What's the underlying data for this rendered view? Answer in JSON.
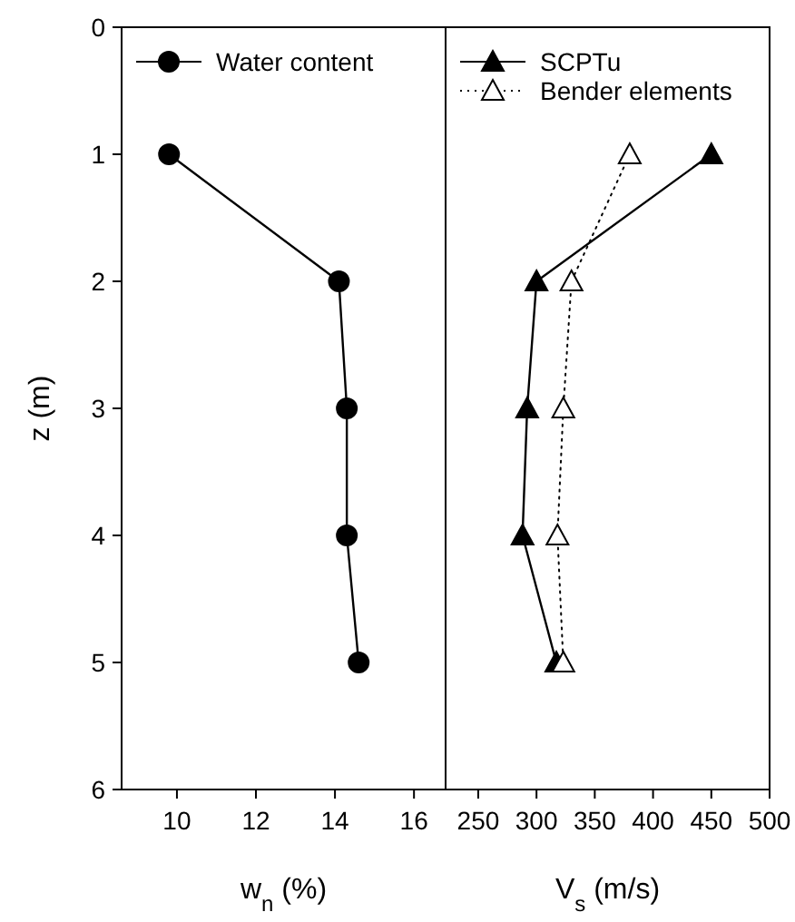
{
  "chart_data": [
    {
      "type": "line",
      "xlabel": "w$_{n}$ (%)",
      "ylabel": "z (m)",
      "xlim": [
        8.6,
        16.8
      ],
      "xticks": [
        10,
        12,
        14,
        16
      ],
      "ylim": [
        6,
        0
      ],
      "yticks": [
        0,
        1,
        2,
        3,
        4,
        5,
        6
      ],
      "legend": "top left",
      "grid": false,
      "series": [
        {
          "name": "Water content",
          "color": "#000000",
          "marker": "circle",
          "line_style": "solid",
          "x": [
            9.8,
            14.1,
            14.3,
            14.3,
            14.6
          ],
          "values": [
            1,
            2,
            3,
            4,
            5
          ]
        }
      ]
    },
    {
      "type": "line",
      "xlabel": "V$_{s}$ (m/s)",
      "xlim": [
        222,
        500
      ],
      "xticks": [
        250,
        300,
        350,
        400,
        450,
        500
      ],
      "ylim": [
        6,
        0
      ],
      "tick_labels": "x",
      "legend": "top left",
      "grid": false,
      "series": [
        {
          "name": "SCPTu",
          "color": "#000000",
          "marker": "triangle",
          "line_style": "solid",
          "x": [
            450,
            300,
            292,
            288,
            317
          ],
          "values": [
            1,
            2,
            3,
            4,
            5
          ]
        },
        {
          "name": "Bender elements",
          "color": "#000000",
          "marker": "triangle",
          "line_style": "dotted",
          "x": [
            380,
            330,
            323,
            318,
            323
          ],
          "values": [
            1,
            2,
            3,
            4,
            5
          ]
        }
      ]
    }
  ]
}
